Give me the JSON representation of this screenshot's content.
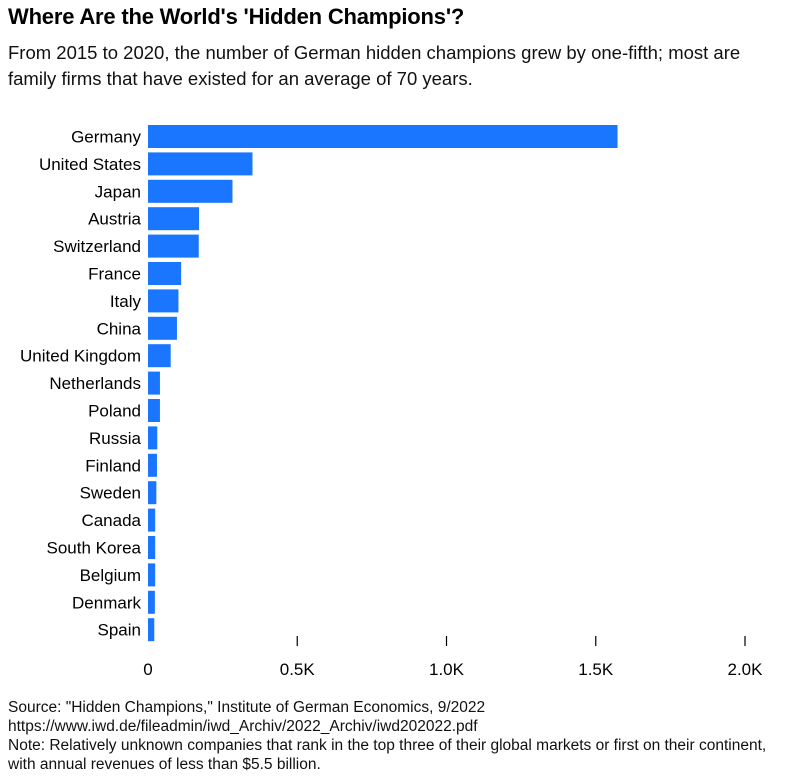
{
  "header": {
    "title": "Where Are the World's 'Hidden Champions'?",
    "subtitle": "From 2015 to 2020, the number of German hidden champions grew by one-fifth; most are family firms that have existed for an average of 70 years."
  },
  "footer": {
    "source": "Source: \"Hidden Champions,\" Institute of German Economics, 9/2022",
    "url": "https://www.iwd.de/fileadmin/iwd_Archiv/2022_Archiv/iwd202022.pdf",
    "note": "Note: Relatively unknown companies that rank in the top three of their global markets or first on their continent, with annual revenues of less than $5.5 billion."
  },
  "colors": {
    "bar": "#1A75FF",
    "tick": "#000000"
  },
  "chart_data": {
    "type": "bar",
    "orientation": "horizontal",
    "categories": [
      "Germany",
      "United States",
      "Japan",
      "Austria",
      "Switzerland",
      "France",
      "Italy",
      "China",
      "United Kingdom",
      "Netherlands",
      "Poland",
      "Russia",
      "Finland",
      "Sweden",
      "Canada",
      "South Korea",
      "Belgium",
      "Denmark",
      "Spain"
    ],
    "values": [
      1573,
      350,
      283,
      171,
      170,
      111,
      102,
      97,
      76,
      40,
      40,
      31,
      30,
      28,
      24,
      24,
      24,
      23,
      21
    ],
    "xlim": [
      0,
      2000
    ],
    "xticks": [
      0,
      500,
      1000,
      1500,
      2000
    ],
    "xtick_labels": [
      "0",
      "0.5K",
      "1.0K",
      "1.5K",
      "2.0K"
    ],
    "grid": false,
    "legend": "none"
  }
}
